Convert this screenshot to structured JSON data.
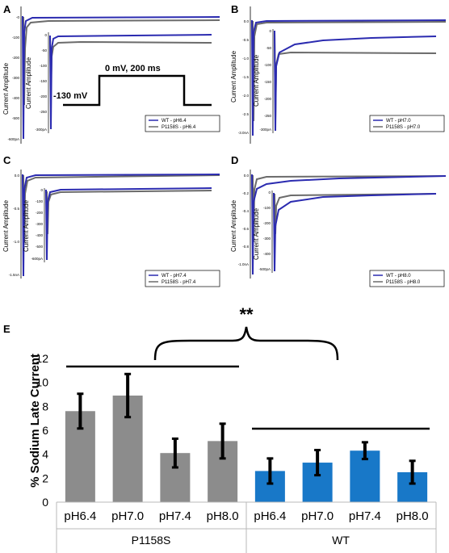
{
  "panels": [
    {
      "label": "A",
      "y_ticks": [
        "-0",
        "-100",
        "-200",
        "-300",
        "-400",
        "-500",
        "-600pA"
      ],
      "y_label": "Current Amplitude",
      "inset_ticks": [
        "0",
        "-50",
        "-100",
        "-150",
        "-200",
        "-250",
        "-300pA"
      ],
      "inset_y_label": "Current Amplitude",
      "legend": [
        "WT - pH6.4",
        "P1158S - pH6.4"
      ],
      "protocol": {
        "hold": "-130 mV",
        "step": "0 mV, 200 ms"
      }
    },
    {
      "label": "B",
      "y_ticks": [
        "0.0",
        "-0.5",
        "-1.0",
        "-1.5",
        "-2.0",
        "-2.5",
        "-3.0nA"
      ],
      "y_label": "Current Amplitude",
      "inset_ticks": [
        "0",
        "-50",
        "-100",
        "-150",
        "-200",
        "-250",
        "-300pA"
      ],
      "inset_y_label": "Current Amplitude",
      "legend": [
        "WT - pH7.0",
        "P1158S - pH7.0"
      ]
    },
    {
      "label": "C",
      "y_ticks": [
        "0.0",
        "-0.5",
        "-1.0",
        "-1.5nA"
      ],
      "y_label": "Current Amplitude",
      "inset_ticks": [
        "0",
        "-100",
        "-200",
        "-300",
        "-400",
        "-500",
        "-600pA"
      ],
      "inset_y_label": "Current Amplitude",
      "legend": [
        "WT - pH7.4",
        "P1158S - pH7.4"
      ]
    },
    {
      "label": "D",
      "y_ticks": [
        "0.0",
        "-0.2",
        "-0.4",
        "-0.6",
        "-0.8",
        "-1.0nA"
      ],
      "y_label": "Current Amplitude",
      "inset_ticks": [
        "0",
        "-100",
        "-200",
        "-300",
        "-400",
        "-500pA"
      ],
      "inset_y_label": "Current Amplitude",
      "legend": [
        "WT - pH8.0",
        "P1158S - pH8.0"
      ]
    }
  ],
  "colors": {
    "wt": "#2b2bb0",
    "p1158s": "#6b6b6b",
    "bar_p1158s": "#8c8c8c",
    "bar_wt": "#1878c8"
  },
  "significance": "**",
  "chart_data": {
    "label": "E",
    "type": "bar",
    "ylabel": "% Sodium Late Current",
    "ylim": [
      0,
      12
    ],
    "yticks": [
      0,
      2,
      4,
      6,
      8,
      10,
      12
    ],
    "categories": [
      "pH6.4",
      "pH7.0",
      "pH7.4",
      "pH8.0",
      "pH6.4",
      "pH7.0",
      "pH7.4",
      "pH8.0"
    ],
    "groups": [
      {
        "name": "P1158S",
        "color": "#8c8c8c",
        "values": [
          7.6,
          8.9,
          4.1,
          5.1
        ],
        "errors": [
          1.45,
          1.8,
          1.2,
          1.45
        ]
      },
      {
        "name": "WT",
        "color": "#1878c8",
        "values": [
          2.6,
          3.3,
          4.3,
          2.5
        ],
        "errors": [
          1.05,
          1.05,
          0.7,
          0.95
        ]
      }
    ],
    "grid": false
  }
}
